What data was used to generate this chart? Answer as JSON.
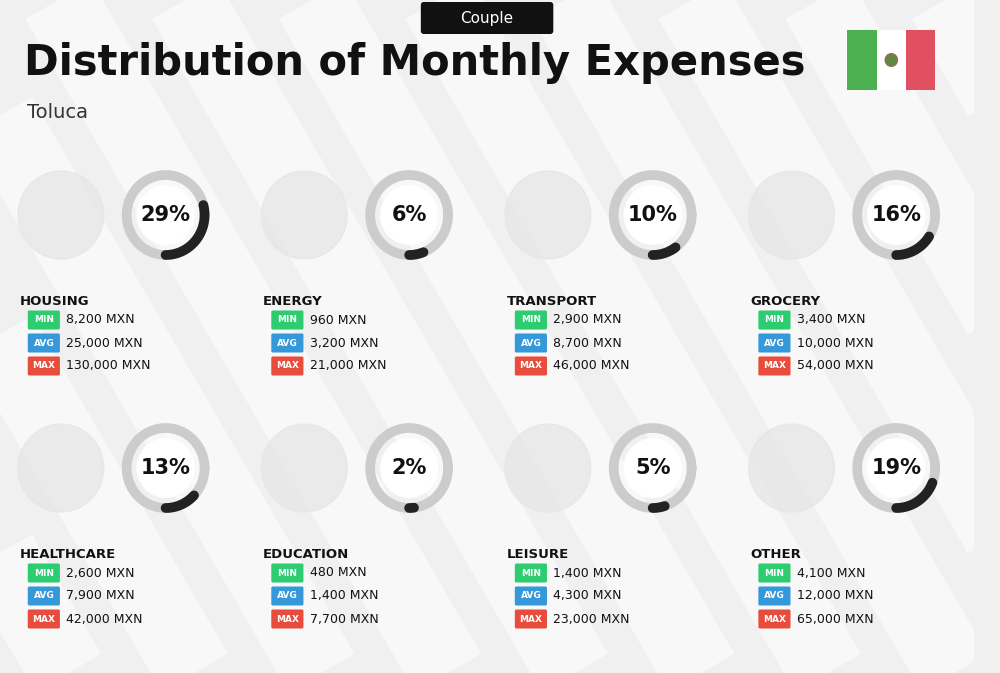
{
  "title": "Distribution of Monthly Expenses",
  "subtitle": "Couple",
  "location": "Toluca",
  "bg_color": "#f0f0f0",
  "categories": [
    {
      "name": "HOUSING",
      "pct": 29,
      "min": "8,200 MXN",
      "avg": "25,000 MXN",
      "max": "130,000 MXN",
      "row": 0,
      "col": 0
    },
    {
      "name": "ENERGY",
      "pct": 6,
      "min": "960 MXN",
      "avg": "3,200 MXN",
      "max": "21,000 MXN",
      "row": 0,
      "col": 1
    },
    {
      "name": "TRANSPORT",
      "pct": 10,
      "min": "2,900 MXN",
      "avg": "8,700 MXN",
      "max": "46,000 MXN",
      "row": 0,
      "col": 2
    },
    {
      "name": "GROCERY",
      "pct": 16,
      "min": "3,400 MXN",
      "avg": "10,000 MXN",
      "max": "54,000 MXN",
      "row": 0,
      "col": 3
    },
    {
      "name": "HEALTHCARE",
      "pct": 13,
      "min": "2,600 MXN",
      "avg": "7,900 MXN",
      "max": "42,000 MXN",
      "row": 1,
      "col": 0
    },
    {
      "name": "EDUCATION",
      "pct": 2,
      "min": "480 MXN",
      "avg": "1,400 MXN",
      "max": "7,700 MXN",
      "row": 1,
      "col": 1
    },
    {
      "name": "LEISURE",
      "pct": 5,
      "min": "1,400 MXN",
      "avg": "4,300 MXN",
      "max": "23,000 MXN",
      "row": 1,
      "col": 2
    },
    {
      "name": "OTHER",
      "pct": 19,
      "min": "4,100 MXN",
      "avg": "12,000 MXN",
      "max": "65,000 MXN",
      "row": 1,
      "col": 3
    }
  ],
  "color_min": "#2ecc71",
  "color_avg": "#3498db",
  "color_max": "#e74c3c",
  "arc_dark": "#222222",
  "arc_light": "#cccccc",
  "flag_green": "#4caf50",
  "flag_white": "#ffffff",
  "flag_red": "#e05060",
  "title_fontsize": 30,
  "subtitle_fontsize": 11,
  "pct_fontsize": 15,
  "cat_fontsize": 9.5,
  "val_fontsize": 9,
  "badge_fontsize": 6.5
}
